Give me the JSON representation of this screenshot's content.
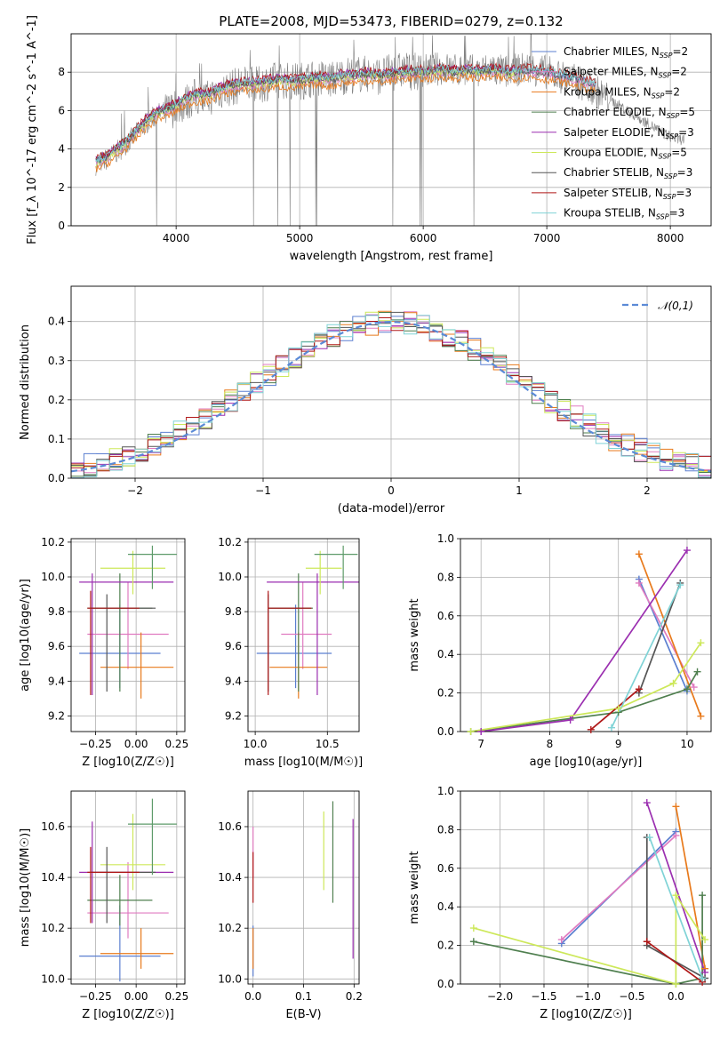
{
  "figure_title": "PLATE=2008, MJD=53473, FIBERID=0279, z=0.132",
  "legend_entries": [
    {
      "name": "Chabrier MILES",
      "n": "2",
      "color": "#5b7fd0"
    },
    {
      "name": "Salpeter MILES",
      "n": "2",
      "color": "#e07bc0"
    },
    {
      "name": "Kroupa MILES",
      "n": "2",
      "color": "#e87a1c"
    },
    {
      "name": "Chabrier ELODIE",
      "n": "5",
      "color": "#4f7f4f"
    },
    {
      "name": "Salpeter ELODIE",
      "n": "3",
      "color": "#9b2fb0"
    },
    {
      "name": "Kroupa ELODIE",
      "n": "5",
      "color": "#cde85a"
    },
    {
      "name": "Chabrier STELIB",
      "n": "3",
      "color": "#555555"
    },
    {
      "name": "Salpeter STELIB",
      "n": "3",
      "color": "#b01818"
    },
    {
      "name": "Kroupa STELIB",
      "n": "3",
      "color": "#7fd3d6"
    }
  ],
  "chart_data": [
    {
      "id": "spectrum",
      "type": "line",
      "xlabel": "wavelength [Angstrom, rest frame]",
      "ylabel": "Flux [f_λ 10^-17 erg cm^-2 s^-1 A^-1]",
      "xlim": [
        3150,
        8330
      ],
      "ylim": [
        0,
        10
      ],
      "xticks": [
        4000,
        5000,
        6000,
        7000,
        8000
      ],
      "yticks": [
        0,
        2,
        4,
        6,
        8
      ],
      "data_series": {
        "name": "data",
        "color": "#808080",
        "x": [
          3350,
          3450,
          3550,
          3650,
          3750,
          3850,
          3950,
          4050,
          4150,
          4250,
          4350,
          4450,
          4550,
          4650,
          4750,
          4850,
          4950,
          5050,
          5150,
          5250,
          5350,
          5450,
          5550,
          5650,
          5750,
          5850,
          5950,
          6050,
          6150,
          6250,
          6350,
          6450,
          6550,
          6650,
          6750,
          6850,
          6950,
          7050,
          7150,
          7250,
          7350,
          7450,
          7550,
          7650,
          7750,
          7850,
          7950,
          8050
        ],
        "y": [
          3.2,
          3.5,
          4.0,
          4.6,
          5.3,
          5.8,
          6.0,
          6.3,
          6.7,
          6.6,
          7.0,
          7.2,
          7.4,
          7.3,
          7.5,
          7.6,
          7.5,
          7.6,
          7.7,
          7.6,
          7.8,
          7.9,
          7.9,
          7.8,
          8.0,
          8.1,
          8.0,
          8.1,
          8.2,
          8.1,
          8.1,
          8.0,
          8.2,
          8.0,
          8.1,
          8.2,
          8.1,
          7.9,
          7.7,
          7.5,
          7.2,
          6.8,
          6.4,
          6.0,
          5.6,
          5.2,
          4.8,
          4.5
        ]
      },
      "model_curve": {
        "x": [
          3350,
          3450,
          3550,
          3650,
          3750,
          3850,
          3950,
          4050,
          4150,
          4250,
          4350,
          4450,
          4550,
          4650,
          4750,
          4850,
          4950,
          5050,
          5150,
          5250,
          5350,
          5450,
          5550,
          5650,
          5750,
          5850,
          5950,
          6050,
          6150,
          6250,
          6350,
          6450,
          6550,
          6650,
          6750,
          6850,
          6950,
          7050,
          7150,
          7250,
          7350
        ],
        "y": [
          3.3,
          3.6,
          4.1,
          4.7,
          5.4,
          5.9,
          6.1,
          6.5,
          6.8,
          6.8,
          7.1,
          7.3,
          7.4,
          7.4,
          7.5,
          7.6,
          7.5,
          7.6,
          7.7,
          7.6,
          7.8,
          7.8,
          7.9,
          7.8,
          7.9,
          8.0,
          8.0,
          8.0,
          8.1,
          8.0,
          8.1,
          8.0,
          8.1,
          8.0,
          8.0,
          8.1,
          8.0,
          7.9,
          7.8,
          7.6,
          7.4
        ]
      },
      "model_offsets": [
        0.05,
        -0.1,
        -0.35,
        0.1,
        0.15,
        -0.05,
        0.0,
        0.2,
        0.1
      ],
      "model_end_wavelength": [
        7400,
        7400,
        7400,
        6800,
        6800,
        6800,
        7400,
        7400,
        7400
      ]
    },
    {
      "id": "residuals",
      "type": "histogram",
      "xlabel": "(data-model)/error",
      "ylabel": "Normed distribution",
      "xlim": [
        -2.5,
        2.5
      ],
      "ylim": [
        0,
        0.49
      ],
      "xticks": [
        -2,
        -1,
        0,
        1,
        2
      ],
      "yticks": [
        0.0,
        0.1,
        0.2,
        0.3,
        0.4
      ],
      "bin_width": 0.1,
      "reference": {
        "name": "𝒩(0,1)",
        "color": "#5b8ad6",
        "mean": 0,
        "sigma": 1
      },
      "bin_edges_start": -2.5
    },
    {
      "id": "age_vs_Z",
      "type": "scatter",
      "xlabel": "Z [log10(Z/Z☉)]",
      "ylabel": "age [log10(age/yr)]",
      "xlim": [
        -0.4,
        0.3
      ],
      "ylim": [
        9.11,
        10.22
      ],
      "xticks": [
        -0.25,
        0.0,
        0.25
      ],
      "yticks": [
        9.2,
        9.4,
        9.6,
        9.8,
        10.0,
        10.2
      ],
      "points": [
        {
          "x": -0.1,
          "y": 9.56,
          "xerr": [
            0.25,
            0.25
          ],
          "yerr": [
            0.2,
            0.28
          ],
          "color": "#5b7fd0"
        },
        {
          "x": -0.05,
          "y": 9.67,
          "xerr": [
            0.25,
            0.25
          ],
          "yerr": [
            0.2,
            0.3
          ],
          "color": "#e07bc0"
        },
        {
          "x": 0.03,
          "y": 9.48,
          "xerr": [
            0.25,
            0.2
          ],
          "yerr": [
            0.18,
            0.2
          ],
          "color": "#e87a1c"
        },
        {
          "x": -0.1,
          "y": 9.82,
          "xerr": [
            0.2,
            0.2
          ],
          "yerr": [
            0.48,
            0.2
          ],
          "color": "#4f7f4f"
        },
        {
          "x": -0.27,
          "y": 9.97,
          "xerr": [
            0.08,
            0.5
          ],
          "yerr": [
            0.65,
            0.05
          ],
          "color": "#9b2fb0"
        },
        {
          "x": -0.02,
          "y": 10.05,
          "xerr": [
            0.2,
            0.2
          ],
          "yerr": [
            0.15,
            0.1
          ],
          "color": "#cde85a"
        },
        {
          "x": -0.18,
          "y": 9.82,
          "xerr": [
            0.1,
            0.3
          ],
          "yerr": [
            0.48,
            0.08
          ],
          "color": "#555555"
        },
        {
          "x": -0.28,
          "y": 9.82,
          "xerr": [
            0.02,
            0.3
          ],
          "yerr": [
            0.5,
            0.1
          ],
          "color": "#b01818"
        },
        {
          "x": 0.1,
          "y": 10.13,
          "xerr": [
            0.15,
            0.15
          ],
          "yerr": [
            0.2,
            0.05
          ],
          "color": "#5e9b6a"
        }
      ]
    },
    {
      "id": "age_vs_mass",
      "type": "scatter",
      "xlabel": "mass [log10(M/M☉)]",
      "ylabel": "",
      "xlim": [
        9.95,
        10.72
      ],
      "ylim": [
        9.11,
        10.22
      ],
      "xticks": [
        10.0,
        10.5
      ],
      "yticks": [
        9.2,
        9.4,
        9.6,
        9.8,
        10.0,
        10.2
      ],
      "points": [
        {
          "x": 10.28,
          "y": 9.56,
          "xerr": [
            0.27,
            0.25
          ],
          "yerr": [
            0.2,
            0.28
          ],
          "color": "#5b7fd0"
        },
        {
          "x": 10.33,
          "y": 9.67,
          "xerr": [
            0.15,
            0.2
          ],
          "yerr": [
            0.2,
            0.3
          ],
          "color": "#e07bc0"
        },
        {
          "x": 10.3,
          "y": 9.48,
          "xerr": [
            0.2,
            0.2
          ],
          "yerr": [
            0.18,
            0.2
          ],
          "color": "#e87a1c"
        },
        {
          "x": 10.3,
          "y": 9.82,
          "xerr": [
            0.2,
            0.1
          ],
          "yerr": [
            0.48,
            0.2
          ],
          "color": "#4f7f4f"
        },
        {
          "x": 10.43,
          "y": 9.97,
          "xerr": [
            0.35,
            0.3
          ],
          "yerr": [
            0.65,
            0.05
          ],
          "color": "#9b2fb0"
        },
        {
          "x": 10.45,
          "y": 10.05,
          "xerr": [
            0.1,
            0.15
          ],
          "yerr": [
            0.15,
            0.1
          ],
          "color": "#cde85a"
        },
        {
          "x": 10.09,
          "y": 9.82,
          "xerr": [
            0.0,
            0.3
          ],
          "yerr": [
            0.48,
            0.08
          ],
          "color": "#555555"
        },
        {
          "x": 10.09,
          "y": 9.82,
          "xerr": [
            0.0,
            0.3
          ],
          "yerr": [
            0.5,
            0.1
          ],
          "color": "#b01818"
        },
        {
          "x": 10.61,
          "y": 10.13,
          "xerr": [
            0.2,
            0.1
          ],
          "yerr": [
            0.2,
            0.05
          ],
          "color": "#5e9b6a"
        }
      ]
    },
    {
      "id": "weight_vs_age",
      "type": "line",
      "xlabel": "age [log10(age/yr)]",
      "ylabel": "mass weight",
      "xlim": [
        6.7,
        10.35
      ],
      "ylim": [
        0,
        1.0
      ],
      "xticks": [
        7,
        8,
        9,
        10
      ],
      "yticks": [
        0.0,
        0.2,
        0.4,
        0.6,
        0.8,
        1.0
      ],
      "series": [
        {
          "color": "#5b7fd0",
          "x": [
            9.3,
            10.0
          ],
          "y": [
            0.79,
            0.21
          ]
        },
        {
          "color": "#e07bc0",
          "x": [
            9.3,
            10.1
          ],
          "y": [
            0.77,
            0.23
          ]
        },
        {
          "color": "#e87a1c",
          "x": [
            9.3,
            10.2
          ],
          "y": [
            0.92,
            0.08
          ]
        },
        {
          "color": "#4f7f4f",
          "x": [
            6.85,
            9.0,
            10.0,
            10.15
          ],
          "y": [
            0.0,
            0.1,
            0.22,
            0.31
          ]
        },
        {
          "color": "#9b2fb0",
          "x": [
            7.0,
            8.3,
            10.0
          ],
          "y": [
            0.0,
            0.06,
            0.94
          ]
        },
        {
          "color": "#cde85a",
          "x": [
            6.85,
            9.0,
            9.8,
            10.2
          ],
          "y": [
            0.0,
            0.12,
            0.25,
            0.46
          ]
        },
        {
          "color": "#555555",
          "x": [
            9.3,
            9.9
          ],
          "y": [
            0.2,
            0.77
          ]
        },
        {
          "color": "#b01818",
          "x": [
            8.6,
            9.3
          ],
          "y": [
            0.01,
            0.22
          ]
        },
        {
          "color": "#7fd3d6",
          "x": [
            8.9,
            9.9
          ],
          "y": [
            0.02,
            0.76
          ]
        }
      ]
    },
    {
      "id": "mass_vs_Z",
      "type": "scatter",
      "xlabel": "Z [log10(Z/Z☉)]",
      "ylabel": "mass [log10(M/M☉)]",
      "xlim": [
        -0.4,
        0.3
      ],
      "ylim": [
        9.98,
        10.74
      ],
      "xticks": [
        -0.25,
        0.0,
        0.25
      ],
      "yticks": [
        10.0,
        10.2,
        10.4,
        10.6
      ],
      "points": [
        {
          "x": -0.1,
          "y": 10.09,
          "xerr": [
            0.25,
            0.25
          ],
          "yerr": [
            0.1,
            0.2
          ],
          "color": "#5b7fd0"
        },
        {
          "x": -0.05,
          "y": 10.26,
          "xerr": [
            0.25,
            0.25
          ],
          "yerr": [
            0.1,
            0.2
          ],
          "color": "#e07bc0"
        },
        {
          "x": 0.03,
          "y": 10.1,
          "xerr": [
            0.25,
            0.2
          ],
          "yerr": [
            0.06,
            0.1
          ],
          "color": "#e87a1c"
        },
        {
          "x": -0.1,
          "y": 10.31,
          "xerr": [
            0.2,
            0.2
          ],
          "yerr": [
            0.1,
            0.1
          ],
          "color": "#4f7f4f"
        },
        {
          "x": -0.27,
          "y": 10.42,
          "xerr": [
            0.08,
            0.5
          ],
          "yerr": [
            0.2,
            0.2
          ],
          "color": "#9b2fb0"
        },
        {
          "x": -0.02,
          "y": 10.45,
          "xerr": [
            0.2,
            0.2
          ],
          "yerr": [
            0.1,
            0.2
          ],
          "color": "#cde85a"
        },
        {
          "x": -0.18,
          "y": 10.42,
          "xerr": [
            0.1,
            0.3
          ],
          "yerr": [
            0.2,
            0.1
          ],
          "color": "#555555"
        },
        {
          "x": -0.28,
          "y": 10.42,
          "xerr": [
            0.02,
            0.3
          ],
          "yerr": [
            0.2,
            0.1
          ],
          "color": "#b01818"
        },
        {
          "x": 0.1,
          "y": 10.61,
          "xerr": [
            0.15,
            0.15
          ],
          "yerr": [
            0.2,
            0.1
          ],
          "color": "#5e9b6a"
        }
      ]
    },
    {
      "id": "mass_vs_ebv",
      "type": "scatter",
      "xlabel": "E(B-V)",
      "ylabel": "",
      "xlim": [
        -0.01,
        0.21
      ],
      "ylim": [
        9.98,
        10.74
      ],
      "xticks": [
        0.0,
        0.1,
        0.2
      ],
      "yticks": [
        10.0,
        10.2,
        10.4,
        10.6
      ],
      "points": [
        {
          "x": 0.0,
          "y": 10.09,
          "yerr": [
            0.08,
            0.12
          ],
          "color": "#5b7fd0"
        },
        {
          "x": 0.0,
          "y": 10.5,
          "yerr": [
            0.1,
            0.1
          ],
          "color": "#e07bc0"
        },
        {
          "x": 0.0,
          "y": 10.1,
          "yerr": [
            0.06,
            0.1
          ],
          "color": "#e87a1c"
        },
        {
          "x": 0.158,
          "y": 10.5,
          "yerr": [
            0.2,
            0.2
          ],
          "color": "#4f7f4f"
        },
        {
          "x": 0.198,
          "y": 10.35,
          "yerr": [
            0.27,
            0.28
          ],
          "color": "#9b2fb0"
        },
        {
          "x": 0.14,
          "y": 10.5,
          "yerr": [
            0.15,
            0.16
          ],
          "color": "#cde85a"
        },
        {
          "x": 0.0,
          "y": 10.4,
          "yerr": [
            0.1,
            0.1
          ],
          "color": "#b01818"
        }
      ]
    },
    {
      "id": "weight_vs_Z",
      "type": "line",
      "xlabel": "Z [log10(Z/Z☉)]",
      "ylabel": "mass weight",
      "xlim": [
        -2.45,
        0.4
      ],
      "ylim": [
        0,
        1.0
      ],
      "xticks": [
        -2.0,
        -1.5,
        -1.0,
        -0.5,
        0.0
      ],
      "yticks": [
        0.0,
        0.2,
        0.4,
        0.6,
        0.8,
        1.0
      ],
      "series": [
        {
          "color": "#5b7fd0",
          "x": [
            -1.3,
            0.0
          ],
          "y": [
            0.21,
            0.79
          ]
        },
        {
          "color": "#e07bc0",
          "x": [
            -1.3,
            0.0
          ],
          "y": [
            0.23,
            0.77
          ]
        },
        {
          "color": "#e87a1c",
          "x": [
            0.0,
            0.33
          ],
          "y": [
            0.92,
            0.08
          ]
        },
        {
          "color": "#4f7f4f",
          "x": [
            -2.3,
            0.0,
            0.3,
            0.3
          ],
          "y": [
            0.22,
            0.0,
            0.03,
            0.46
          ]
        },
        {
          "color": "#9b2fb0",
          "x": [
            -0.33,
            0.33
          ],
          "y": [
            0.94,
            0.06
          ]
        },
        {
          "color": "#cde85a",
          "x": [
            -2.3,
            0.0,
            0.0,
            0.33
          ],
          "y": [
            0.29,
            0.0,
            0.46,
            0.23
          ]
        },
        {
          "color": "#555555",
          "x": [
            -0.33,
            -0.33,
            0.33
          ],
          "y": [
            0.76,
            0.2,
            0.03
          ]
        },
        {
          "color": "#b01818",
          "x": [
            -0.33,
            0.3
          ],
          "y": [
            0.22,
            0.01
          ]
        },
        {
          "color": "#7fd3d6",
          "x": [
            -0.3,
            0.3
          ],
          "y": [
            0.76,
            0.03
          ]
        }
      ]
    }
  ]
}
